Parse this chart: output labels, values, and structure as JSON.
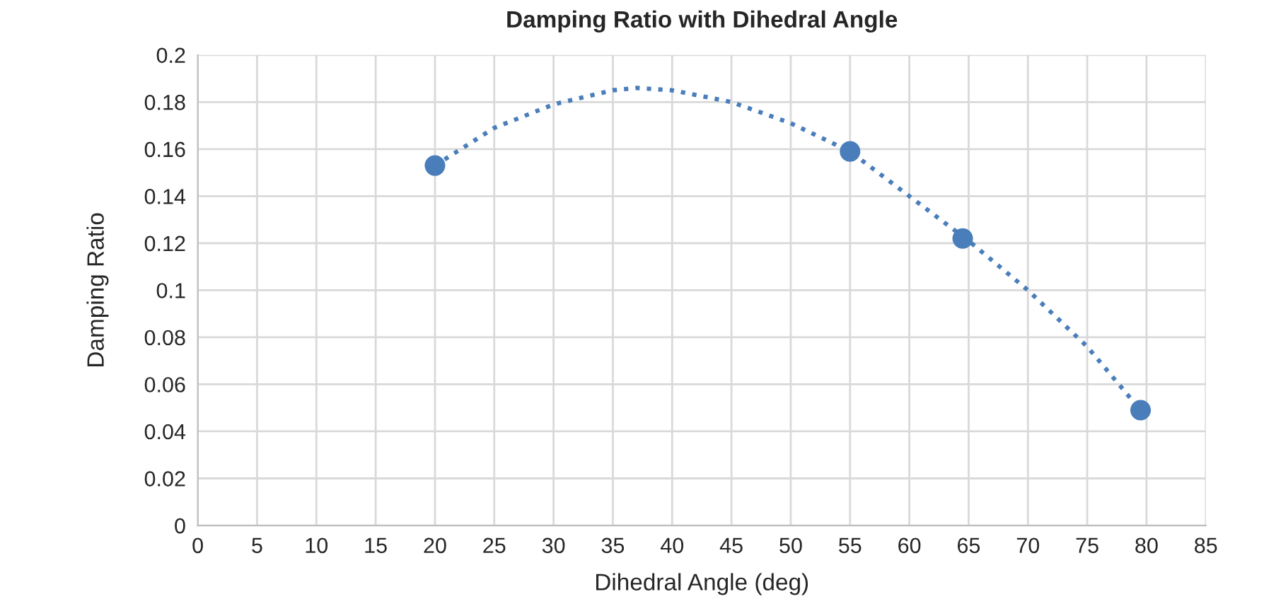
{
  "chart_data": {
    "type": "scatter",
    "title": "Damping Ratio with Dihedral Angle",
    "xlabel": "Dihedral Angle (deg)",
    "ylabel": "Damping Ratio",
    "series": [
      {
        "type": "line",
        "color": "#4a7ebb",
        "line_style": "dotted",
        "marker": "none",
        "x": [
          20,
          25,
          30,
          35,
          37,
          40,
          45,
          50,
          55,
          60,
          65,
          70,
          75,
          79.5
        ],
        "values": [
          0.153,
          0.169,
          0.179,
          0.185,
          0.186,
          0.185,
          0.18,
          0.171,
          0.159,
          0.14,
          0.121,
          0.1,
          0.076,
          0.049
        ]
      },
      {
        "color": "#4a7ebb",
        "marker": "circle",
        "x": [
          20,
          55,
          64.5,
          79.5
        ],
        "values": [
          0.153,
          0.159,
          0.122,
          0.049
        ]
      }
    ],
    "xlim": [
      0,
      85
    ],
    "xticks": [
      0,
      5,
      10,
      15,
      20,
      25,
      30,
      35,
      40,
      45,
      50,
      55,
      60,
      65,
      70,
      75,
      80,
      85
    ],
    "ylim": [
      0,
      0.2
    ],
    "yticks": [
      0,
      0.02,
      0.04,
      0.06,
      0.08,
      0.1,
      0.12,
      0.14,
      0.16,
      0.18,
      0.2
    ],
    "grid": true
  }
}
